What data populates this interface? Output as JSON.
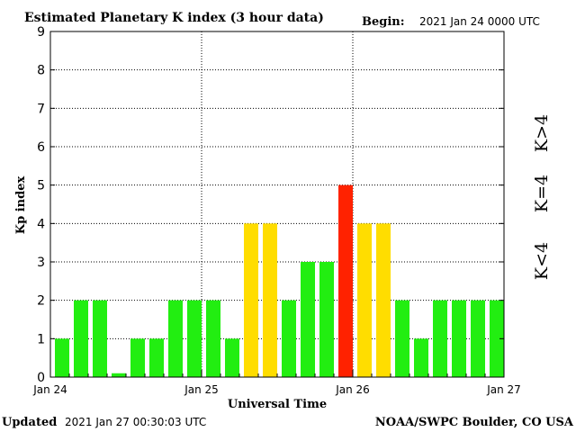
{
  "header": {
    "title": "Estimated Planetary K index (3 hour data)",
    "begin_label": "Begin:",
    "begin_value": "2021 Jan 24 0000 UTC"
  },
  "footer": {
    "updated_label": "Updated",
    "updated_value": "2021 Jan 27 00:30:03 UTC",
    "source": "NOAA/SWPC Boulder, CO USA"
  },
  "legend": {
    "low": {
      "label": "K<4",
      "color": "#22ee11"
    },
    "mid": {
      "label": "K=4",
      "color": "#ffdd00"
    },
    "high": {
      "label": "K>4",
      "color": "#ff2200"
    }
  },
  "chart_data": {
    "type": "bar",
    "title": "Estimated Planetary K index (3 hour data)",
    "xlabel": "Universal Time",
    "ylabel": "Kp index",
    "ylim": [
      0,
      9
    ],
    "yticks": [
      0,
      1,
      2,
      3,
      4,
      5,
      6,
      7,
      8,
      9
    ],
    "xtick_labels": [
      "Jan 24",
      "Jan 25",
      "Jan 26",
      "Jan 27"
    ],
    "bins_per_day": 8,
    "grid": true,
    "values": [
      1,
      2,
      2,
      0.1,
      1,
      1,
      2,
      2,
      2,
      1,
      4,
      4,
      2,
      3,
      3,
      5,
      4,
      4,
      2,
      1,
      2,
      2,
      2,
      2
    ]
  }
}
